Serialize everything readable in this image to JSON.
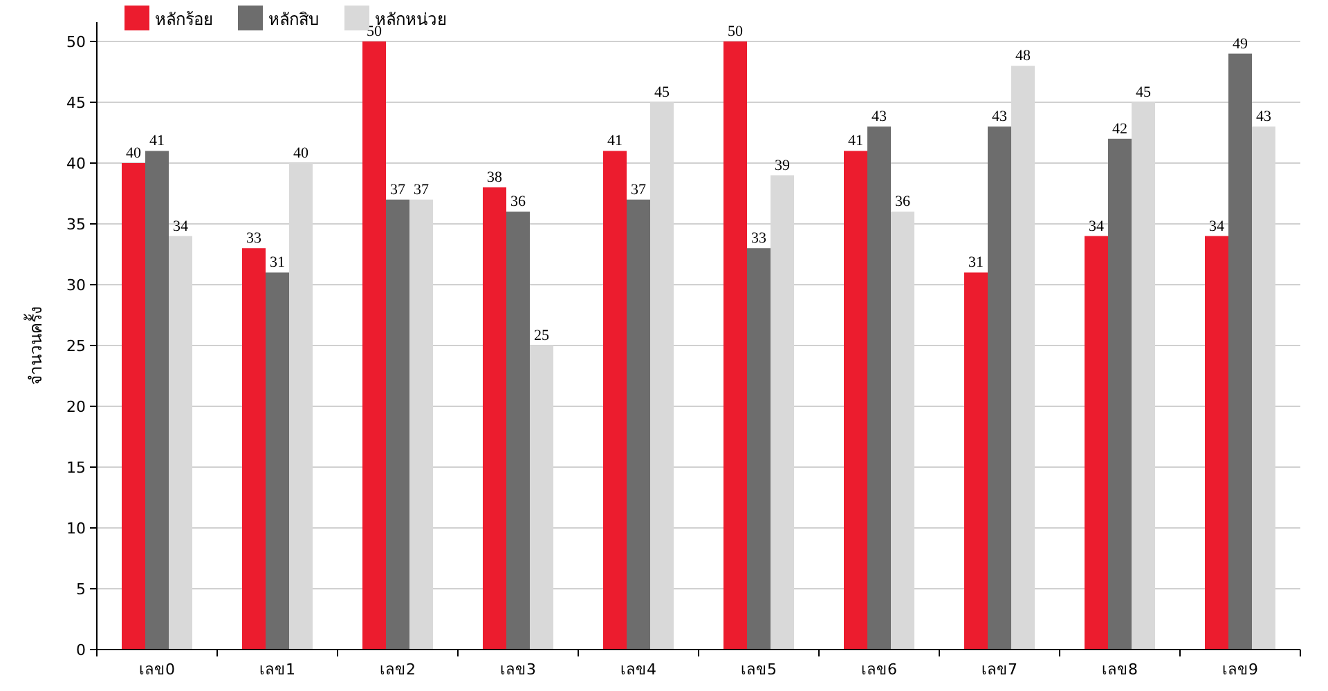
{
  "chart_data": {
    "type": "bar",
    "ylabel": "จำนวนครั้ง",
    "categories": [
      "เลข0",
      "เลข1",
      "เลข2",
      "เลข3",
      "เลข4",
      "เลข5",
      "เลข6",
      "เลข7",
      "เลข8",
      "เลข9"
    ],
    "series": [
      {
        "name": "หลักร้อย",
        "color": "#ec1c2e",
        "values": [
          40,
          33,
          50,
          38,
          41,
          50,
          41,
          31,
          34,
          34
        ]
      },
      {
        "name": "หลักสิบ",
        "color": "#6d6d6d",
        "values": [
          41,
          31,
          37,
          36,
          37,
          33,
          43,
          43,
          42,
          49
        ]
      },
      {
        "name": "หลักหน่วย",
        "color": "#d9d9d9",
        "values": [
          34,
          40,
          37,
          25,
          45,
          39,
          36,
          48,
          45,
          43
        ]
      }
    ],
    "ylim": [
      0,
      50
    ],
    "yticks": [
      0,
      5,
      10,
      15,
      20,
      25,
      30,
      35,
      40,
      45,
      50
    ],
    "grid": "y",
    "legend": "top left",
    "data_labels": true
  }
}
